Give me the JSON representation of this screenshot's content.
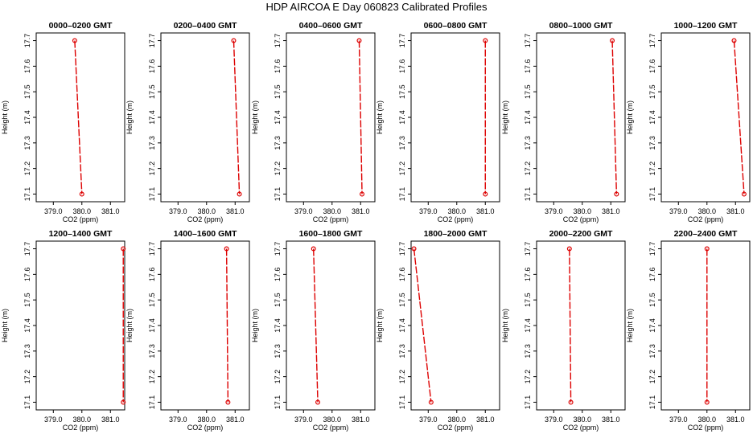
{
  "title": "HDP  AIRCOA E  Day 060823  Calibrated Profiles",
  "chart_data": {
    "type": "line",
    "title": "HDP  AIRCOA E  Day 060823  Calibrated Profiles",
    "xlabel": "CO2 (ppm)",
    "ylabel": "Height (m)",
    "xlim": [
      378.4,
      381.5
    ],
    "ylim": [
      17.07,
      17.73
    ],
    "x_ticks": [
      "379.0",
      "380.0",
      "381.0"
    ],
    "y_ticks": [
      "17.1",
      "17.2",
      "17.3",
      "17.4",
      "17.5",
      "17.6",
      "17.7"
    ],
    "layout": "2 rows x 6 columns",
    "line_color": "#dd0000",
    "panels": [
      {
        "title": "0000–0200 GMT",
        "points": [
          {
            "x": 379.75,
            "y": 17.7
          },
          {
            "x": 380.0,
            "y": 17.1
          }
        ]
      },
      {
        "title": "0200–0400 GMT",
        "points": [
          {
            "x": 380.95,
            "y": 17.7
          },
          {
            "x": 381.15,
            "y": 17.1
          }
        ]
      },
      {
        "title": "0400–0600 GMT",
        "points": [
          {
            "x": 380.95,
            "y": 17.7
          },
          {
            "x": 381.05,
            "y": 17.1
          }
        ]
      },
      {
        "title": "0600–0800 GMT",
        "points": [
          {
            "x": 381.0,
            "y": 17.7
          },
          {
            "x": 381.0,
            "y": 17.1
          }
        ]
      },
      {
        "title": "0800–1000 GMT",
        "points": [
          {
            "x": 381.05,
            "y": 17.7
          },
          {
            "x": 381.2,
            "y": 17.1
          }
        ]
      },
      {
        "title": "1000–1200 GMT",
        "points": [
          {
            "x": 380.95,
            "y": 17.7
          },
          {
            "x": 381.3,
            "y": 17.1
          }
        ]
      },
      {
        "title": "1200–1400 GMT",
        "points": [
          {
            "x": 381.45,
            "y": 17.7
          },
          {
            "x": 381.45,
            "y": 17.1
          }
        ]
      },
      {
        "title": "1400–1600 GMT",
        "points": [
          {
            "x": 380.7,
            "y": 17.7
          },
          {
            "x": 380.75,
            "y": 17.1
          }
        ]
      },
      {
        "title": "1600–1800 GMT",
        "points": [
          {
            "x": 379.35,
            "y": 17.7
          },
          {
            "x": 379.5,
            "y": 17.1
          }
        ]
      },
      {
        "title": "1800–2000 GMT",
        "points": [
          {
            "x": 378.5,
            "y": 17.7
          },
          {
            "x": 379.1,
            "y": 17.1
          }
        ]
      },
      {
        "title": "2000–2200 GMT",
        "points": [
          {
            "x": 379.55,
            "y": 17.7
          },
          {
            "x": 379.6,
            "y": 17.1
          }
        ]
      },
      {
        "title": "2200–2400 GMT",
        "points": [
          {
            "x": 380.0,
            "y": 17.7
          },
          {
            "x": 380.0,
            "y": 17.1
          }
        ]
      }
    ]
  }
}
